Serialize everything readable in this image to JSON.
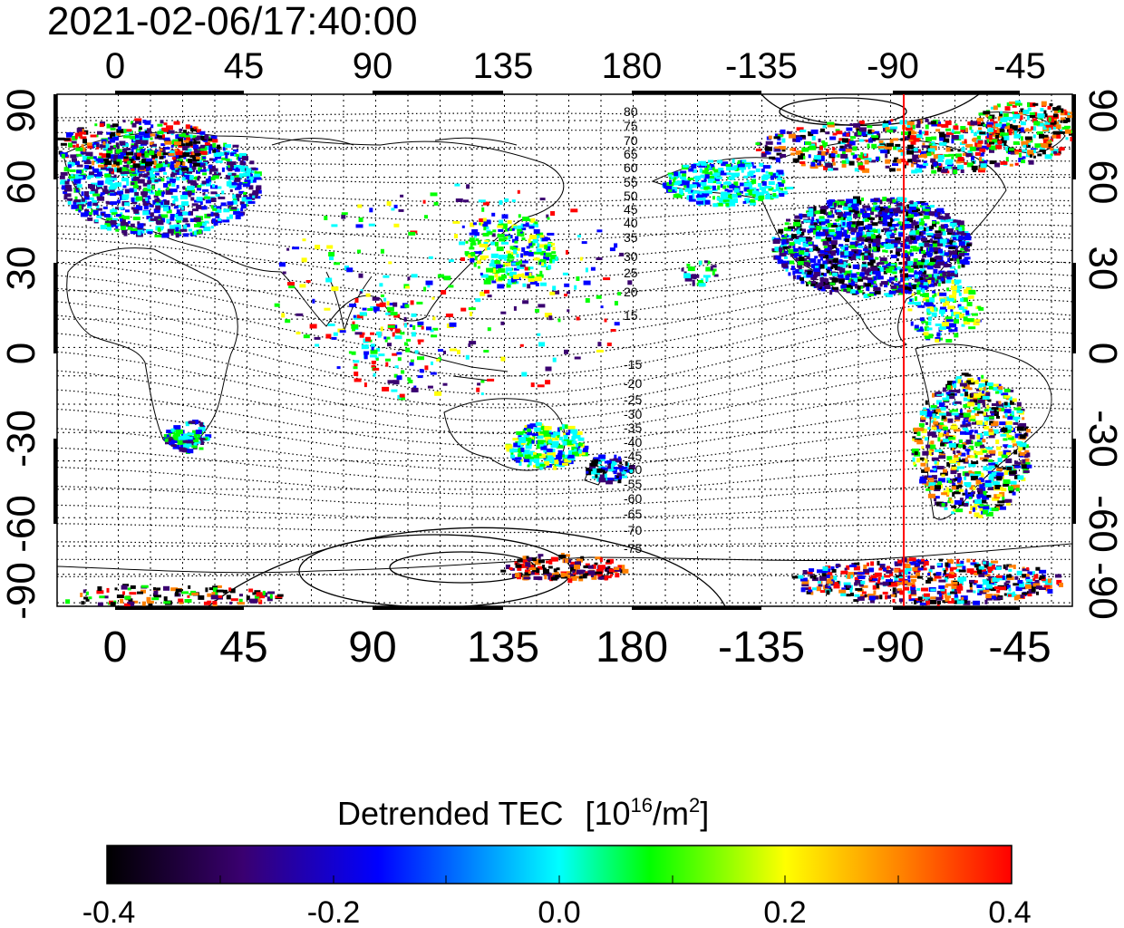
{
  "title": "2021-02-06/17:40:00",
  "map": {
    "lon_ticks_top": [
      "0",
      "45",
      "90",
      "135",
      "180",
      "-135",
      "-90",
      "-45"
    ],
    "lon_ticks_bottom": [
      "0",
      "45",
      "90",
      "135",
      "180",
      "-135",
      "-90",
      "-45"
    ],
    "lat_ticks_left": [
      "90",
      "60",
      "30",
      "0",
      "-30",
      "-60",
      "-90"
    ],
    "lat_ticks_right": [
      "90",
      "60",
      "30",
      "0",
      "-30",
      "-60",
      "-90"
    ],
    "contour_labels_north": [
      "80",
      "75",
      "70",
      "65",
      "60",
      "55",
      "50",
      "45",
      "40",
      "35",
      "30",
      "25",
      "20",
      "15"
    ],
    "contour_labels_south": [
      "-15",
      "-20",
      "-25",
      "-30",
      "-35",
      "-40",
      "-45",
      "-50",
      "-55",
      "-60",
      "-65",
      "-70",
      "-75"
    ],
    "south_polar_labels": [
      "65",
      "70",
      "75"
    ],
    "terminator_color": "#ff0000",
    "terminator_longitude": -87
  },
  "colorbar": {
    "label_main": "Detrended TEC",
    "label_unit_prefix": "[10",
    "label_unit_exp": "16",
    "label_unit_mid": "/m",
    "label_unit_exp2": "2",
    "label_unit_suffix": "]",
    "ticks": [
      "-0.4",
      "-0.2",
      "0.0",
      "0.2",
      "0.4"
    ],
    "range": [
      -0.4,
      0.4
    ],
    "colors": [
      "#000000",
      "#3a0070",
      "#0000ff",
      "#00ffff",
      "#00ff00",
      "#ffff00",
      "#ff8000",
      "#ff0000"
    ]
  }
}
